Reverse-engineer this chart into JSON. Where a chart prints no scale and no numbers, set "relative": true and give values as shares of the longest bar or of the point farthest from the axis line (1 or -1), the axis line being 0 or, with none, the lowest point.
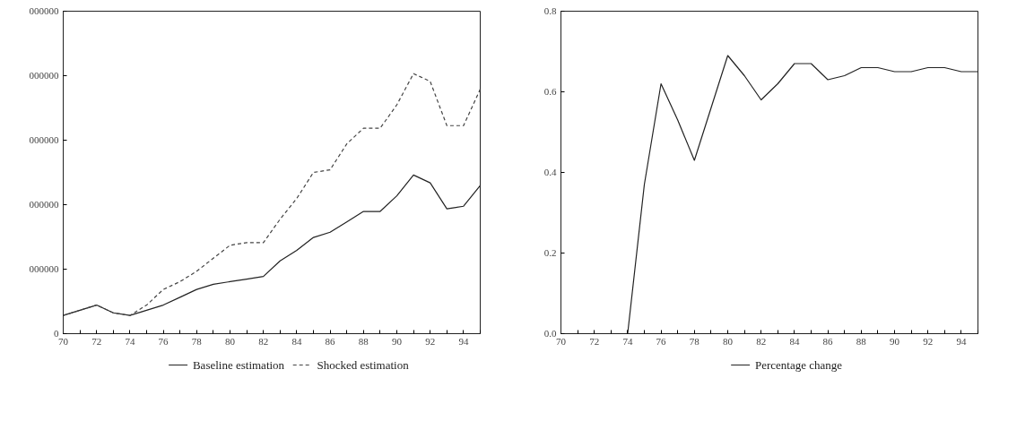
{
  "chart_data": [
    {
      "type": "line",
      "relative": true,
      "x": [
        70,
        71,
        72,
        73,
        74,
        75,
        76,
        77,
        78,
        79,
        80,
        81,
        82,
        83,
        84,
        85,
        86,
        87,
        88,
        89,
        90,
        91,
        92,
        93,
        94,
        95
      ],
      "series": [
        {
          "name": "Baseline estimation",
          "color": "#222222",
          "line_style": "solid",
          "values": [
            0.07,
            0.09,
            0.11,
            0.08,
            0.07,
            0.09,
            0.11,
            0.14,
            0.17,
            0.19,
            0.2,
            0.21,
            0.22,
            0.28,
            0.32,
            0.37,
            0.39,
            0.43,
            0.47,
            0.47,
            0.53,
            0.61,
            0.58,
            0.48,
            0.49,
            0.57
          ]
        },
        {
          "name": "Shocked estimation",
          "color": "#444444",
          "line_style": "dashed",
          "values": [
            0.07,
            0.09,
            0.11,
            0.08,
            0.07,
            0.11,
            0.17,
            0.2,
            0.24,
            0.29,
            0.34,
            0.35,
            0.35,
            0.44,
            0.52,
            0.62,
            0.63,
            0.73,
            0.79,
            0.79,
            0.88,
            1,
            0.97,
            0.8,
            0.8,
            0.94
          ]
        }
      ],
      "xlim": [
        70,
        95
      ],
      "xticks": [
        70,
        {
          "value": 71,
          "label": null
        },
        72,
        {
          "value": 73,
          "label": null
        },
        74,
        {
          "value": 75,
          "label": null
        },
        76,
        {
          "value": 77,
          "label": null
        },
        78,
        {
          "value": 79,
          "label": null
        },
        80,
        {
          "value": 81,
          "label": null
        },
        82,
        {
          "value": 83,
          "label": null
        },
        84,
        {
          "value": 85,
          "label": null
        },
        86,
        {
          "value": 87,
          "label": null
        },
        88,
        {
          "value": 89,
          "label": null
        },
        90,
        {
          "value": 91,
          "label": null
        },
        92,
        {
          "value": 93,
          "label": null
        },
        94,
        {
          "value": 95,
          "label": null
        }
      ],
      "annotations": [
        "0",
        "000000",
        "000000",
        "000000",
        "000000",
        "000000"
      ],
      "grid": false,
      "legend": "bottom"
    },
    {
      "type": "line",
      "x": [
        74,
        75,
        76,
        77,
        78,
        79,
        80,
        81,
        82,
        83,
        84,
        85,
        86,
        87,
        88,
        89,
        90,
        91,
        92,
        93,
        94,
        95
      ],
      "series": [
        {
          "name": "Percentage change",
          "color": "#222222",
          "line_style": "solid",
          "values": [
            0,
            0.37,
            0.62,
            0.53,
            0.43,
            0.56,
            0.69,
            0.64,
            0.58,
            0.62,
            0.67,
            0.67,
            0.63,
            0.64,
            0.66,
            0.66,
            0.65,
            0.65,
            0.66,
            0.66,
            0.65,
            0.65
          ]
        }
      ],
      "xlim": [
        70,
        95
      ],
      "ylim": [
        0,
        0.8
      ],
      "xticks": [
        70,
        {
          "value": 71,
          "label": null
        },
        72,
        {
          "value": 73,
          "label": null
        },
        74,
        {
          "value": 75,
          "label": null
        },
        76,
        {
          "value": 77,
          "label": null
        },
        78,
        {
          "value": 79,
          "label": null
        },
        80,
        {
          "value": 81,
          "label": null
        },
        82,
        {
          "value": 83,
          "label": null
        },
        84,
        {
          "value": 85,
          "label": null
        },
        86,
        {
          "value": 87,
          "label": null
        },
        88,
        {
          "value": 89,
          "label": null
        },
        90,
        {
          "value": 91,
          "label": null
        },
        92,
        {
          "value": 93,
          "label": null
        },
        94,
        {
          "value": 95,
          "label": null
        }
      ],
      "yticks": [
        {
          "value": 0,
          "label": "0.0"
        },
        0.2,
        0.4,
        0.6,
        0.8
      ],
      "grid": false,
      "legend": "bottom"
    }
  ]
}
